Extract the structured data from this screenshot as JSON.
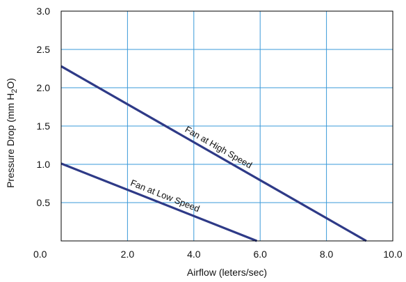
{
  "chart_data": {
    "type": "line",
    "title": "",
    "xlabel": "Airflow (leters/sec)",
    "ylabel_main": "Pressure Drop  (mm H",
    "ylabel_sub": "2",
    "ylabel_tail": "O)",
    "xlim": [
      0,
      10
    ],
    "ylim": [
      0,
      3
    ],
    "xticks": [
      2,
      4,
      6,
      8,
      10
    ],
    "xtick_labels": [
      "2.0",
      "4.0",
      "6.0",
      "8.0",
      "10.0"
    ],
    "yticks": [
      0,
      0.5,
      1,
      1.5,
      2,
      2.5,
      3
    ],
    "ytick_labels": [
      "0.0",
      "0.5",
      "1.0",
      "1.5",
      "2.0",
      "2.5",
      "3.0"
    ],
    "grid": true,
    "series": [
      {
        "name": "Fan at High Speed",
        "x": [
          0,
          9.2
        ],
        "y": [
          2.28,
          0
        ]
      },
      {
        "name": "Fan at Low Speed",
        "x": [
          0,
          5.9
        ],
        "y": [
          1.01,
          0
        ]
      }
    ]
  },
  "colors": {
    "grid": "#3a9ad9",
    "frame": "#000000",
    "line": "#2e3a87"
  }
}
